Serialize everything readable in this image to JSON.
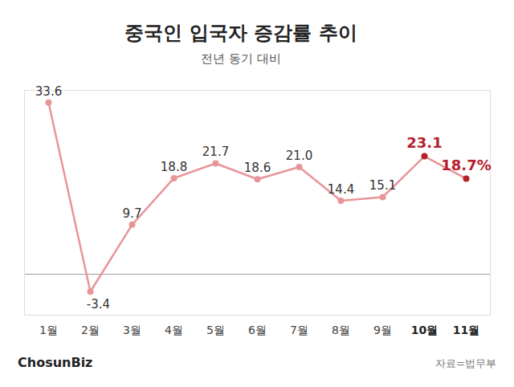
{
  "chart_data": {
    "type": "line",
    "title": "중국인 입국자 증감률 추이",
    "subtitle": "전년 동기 대비",
    "source": "자료=법무부",
    "brand": "ChosunBiz",
    "categories": [
      "1월",
      "2월",
      "3월",
      "4월",
      "5월",
      "6월",
      "7월",
      "8월",
      "9월",
      "10월",
      "11월"
    ],
    "values": [
      33.6,
      -3.4,
      9.7,
      18.8,
      21.7,
      18.6,
      21.0,
      14.4,
      15.1,
      23.1,
      18.7
    ],
    "value_labels": [
      "33.6",
      "-3.4",
      "9.7",
      "18.8",
      "21.7",
      "18.6",
      "21.0",
      "14.4",
      "15.1",
      "23.1",
      "18.7%"
    ],
    "color": "#e8959a",
    "colors": [
      "#e8959a",
      "#e8959a",
      "#e8959a",
      "#e8959a",
      "#e8959a",
      "#e8959a",
      "#e8959a",
      "#e8959a",
      "#e8959a",
      "#b5202a",
      "#b5202a"
    ],
    "marker": "circle",
    "data_labels": true,
    "ylim": [
      -8,
      36
    ],
    "yticks": [
      0
    ],
    "grid": true,
    "tick_labels": "x"
  }
}
